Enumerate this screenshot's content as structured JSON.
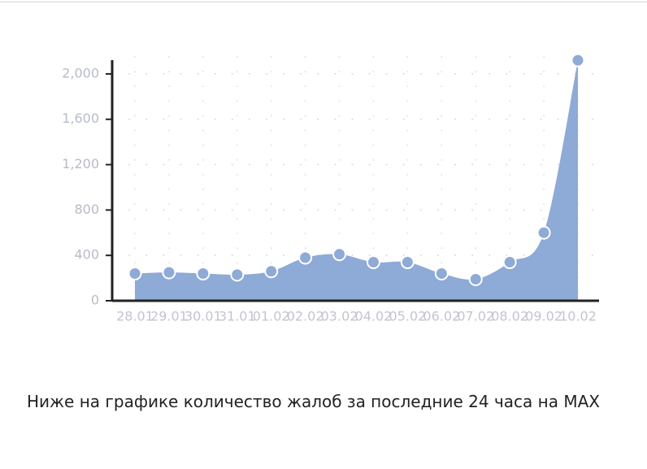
{
  "chart_data": {
    "type": "area",
    "categories": [
      "28.01",
      "29.01",
      "30.01",
      "31.01",
      "01.02",
      "02.02",
      "03.02",
      "04.02",
      "05.02",
      "06.02",
      "07.02",
      "08.02",
      "09.02",
      "10.02"
    ],
    "values": [
      240,
      250,
      240,
      230,
      260,
      380,
      410,
      340,
      340,
      240,
      190,
      340,
      600,
      2120
    ],
    "color": "#8eaad6",
    "ylim": [
      0,
      2150
    ],
    "yticks": [
      0,
      400,
      800,
      {
        "value": 1200,
        "label": "1,200"
      },
      {
        "value": 1600,
        "label": "1,600"
      },
      {
        "value": 2000,
        "label": "2,000"
      }
    ],
    "grid": true
  },
  "caption": "Ниже на графике количество жалоб за последние 24 часа на MAX"
}
